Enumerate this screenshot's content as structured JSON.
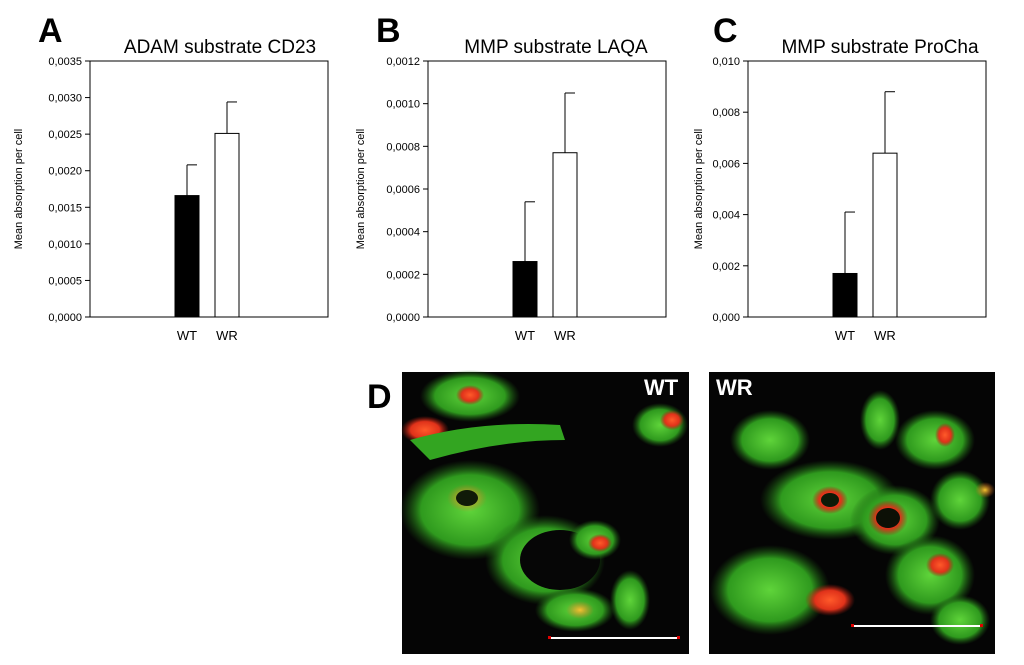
{
  "panels": [
    "A",
    "B",
    "C",
    "D"
  ],
  "chart_data": [
    {
      "type": "bar",
      "panel": "A",
      "title": "ADAM substrate CD23",
      "ylabel": "Mean absorption per cell",
      "categories": [
        "WT",
        "WR"
      ],
      "values": [
        0.00166,
        0.00251
      ],
      "errors": [
        0.00042,
        0.00043
      ],
      "bar_colors": [
        "#000000",
        "#ffffff"
      ],
      "ylim": [
        0,
        0.0035
      ],
      "yticks": [
        "0,0000",
        "0,0005",
        "0,0010",
        "0,0015",
        "0,0020",
        "0,0025",
        "0,0030",
        "0,0035"
      ],
      "grid": false
    },
    {
      "type": "bar",
      "panel": "B",
      "title": "MMP substrate LAQA",
      "ylabel": "Mean absorption per cell",
      "categories": [
        "WT",
        "WR"
      ],
      "values": [
        0.00026,
        0.00077
      ],
      "errors": [
        0.00028,
        0.00028
      ],
      "bar_colors": [
        "#000000",
        "#ffffff"
      ],
      "ylim": [
        0,
        0.0012
      ],
      "yticks": [
        "0,0000",
        "0,0002",
        "0,0004",
        "0,0006",
        "0,0008",
        "0,0010",
        "0,0012"
      ],
      "grid": false
    },
    {
      "type": "bar",
      "panel": "C",
      "title": "MMP substrate ProCha",
      "ylabel": "Mean absorption per cell",
      "categories": [
        "WT",
        "WR"
      ],
      "values": [
        0.0017,
        0.0064
      ],
      "errors": [
        0.0024,
        0.0024
      ],
      "bar_colors": [
        "#000000",
        "#ffffff"
      ],
      "ylim": [
        0,
        0.01
      ],
      "yticks": [
        "0,000",
        "0,002",
        "0,004",
        "0,006",
        "0,008",
        "0,010"
      ],
      "grid": false
    }
  ],
  "micrographs": [
    {
      "label": "WT"
    },
    {
      "label": "WR"
    }
  ]
}
